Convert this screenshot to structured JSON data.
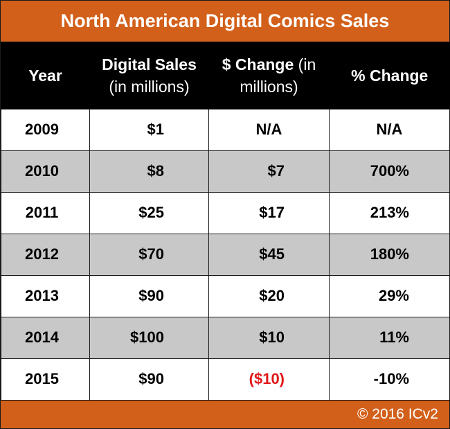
{
  "title": "North American Digital Comics Sales",
  "headers": {
    "year": "Year",
    "sales_line1": "Digital Sales",
    "sales_line2": "(in millions)",
    "dchange_bold": "$ Change",
    "dchange_light1": " (in",
    "dchange_line2": "millions)",
    "pchange": "% Change"
  },
  "rows": [
    {
      "year": "2009",
      "sales": "$1",
      "dchange": "N/A",
      "pchange": "N/A"
    },
    {
      "year": "2010",
      "sales": "$8",
      "dchange": "$7",
      "pchange": "700%"
    },
    {
      "year": "2011",
      "sales": "$25",
      "dchange": "$17",
      "pchange": "213%"
    },
    {
      "year": "2012",
      "sales": "$70",
      "dchange": "$45",
      "pchange": "180%"
    },
    {
      "year": "2013",
      "sales": "$90",
      "dchange": "$20",
      "pchange": "29%"
    },
    {
      "year": "2014",
      "sales": "$100",
      "dchange": "$10",
      "pchange": "11%"
    },
    {
      "year": "2015",
      "sales": "$90",
      "dchange": "($10)",
      "pchange": "-10%"
    }
  ],
  "footer": "© 2016 ICv2",
  "colors": {
    "accent_orange": "#d2601a",
    "header_black": "#000000",
    "row_shade": "#c8c8c8",
    "negative_red": "#e0191a"
  },
  "chart_data": {
    "type": "table",
    "title": "North American Digital Comics Sales",
    "columns": [
      "Year",
      "Digital Sales (in millions)",
      "$ Change (in millions)",
      "% Change"
    ],
    "rows": [
      [
        "2009",
        "$1",
        "N/A",
        "N/A"
      ],
      [
        "2010",
        "$8",
        "$7",
        "700%"
      ],
      [
        "2011",
        "$25",
        "$17",
        "213%"
      ],
      [
        "2012",
        "$70",
        "$45",
        "180%"
      ],
      [
        "2013",
        "$90",
        "$20",
        "29%"
      ],
      [
        "2014",
        "$100",
        "$10",
        "11%"
      ],
      [
        "2015",
        "$90",
        "($10)",
        "-10%"
      ]
    ]
  }
}
